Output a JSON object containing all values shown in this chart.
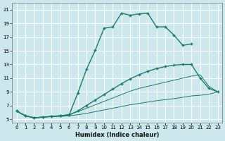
{
  "xlabel": "Humidex (Indice chaleur)",
  "bg_color": "#cce8ec",
  "grid_color": "#ffffff",
  "line_color": "#1a7a6e",
  "xlim": [
    -0.5,
    23.5
  ],
  "ylim": [
    4.5,
    22.0
  ],
  "xticks": [
    0,
    1,
    2,
    3,
    4,
    5,
    6,
    7,
    8,
    9,
    10,
    11,
    12,
    13,
    14,
    15,
    16,
    17,
    18,
    19,
    20,
    21,
    22,
    23
  ],
  "yticks": [
    5,
    7,
    9,
    11,
    13,
    15,
    17,
    19,
    21
  ],
  "line1_x": [
    0,
    1,
    2,
    3,
    4,
    5,
    6,
    7,
    8,
    9,
    10,
    11,
    12,
    13,
    14,
    15,
    16,
    17,
    18,
    19,
    20,
    21,
    22,
    23
  ],
  "line1_y": [
    6.2,
    5.5,
    5.2,
    5.3,
    5.4,
    5.4,
    5.5,
    5.65,
    5.85,
    6.1,
    6.35,
    6.6,
    6.85,
    7.1,
    7.3,
    7.5,
    7.7,
    7.85,
    8.0,
    8.2,
    8.4,
    8.5,
    8.65,
    9.0
  ],
  "line2_x": [
    0,
    1,
    2,
    3,
    4,
    5,
    6,
    7,
    8,
    9,
    10,
    11,
    12,
    13,
    14,
    15,
    16,
    17,
    18,
    19,
    20,
    21,
    22,
    23
  ],
  "line2_y": [
    6.2,
    5.5,
    5.2,
    5.3,
    5.4,
    5.5,
    5.7,
    6.1,
    6.6,
    7.1,
    7.6,
    8.1,
    8.6,
    9.1,
    9.5,
    9.8,
    10.1,
    10.4,
    10.7,
    11.0,
    11.3,
    11.5,
    9.8,
    9.0
  ],
  "line3_x": [
    0,
    1,
    2,
    3,
    4,
    5,
    6,
    7,
    8,
    9,
    10,
    11,
    12,
    13,
    14,
    15,
    16,
    17,
    18,
    19,
    20
  ],
  "line3_y": [
    6.2,
    5.5,
    5.2,
    5.3,
    5.4,
    5.5,
    5.6,
    8.8,
    12.3,
    15.1,
    18.3,
    18.5,
    20.5,
    20.2,
    20.4,
    20.5,
    18.5,
    18.5,
    17.3,
    15.8,
    16.0
  ],
  "line4_x": [
    0,
    1,
    2,
    3,
    4,
    5,
    6,
    7,
    8,
    9,
    10,
    11,
    12,
    13,
    14,
    15,
    16,
    17,
    18,
    19,
    20,
    21,
    22,
    23
  ],
  "line4_y": [
    6.2,
    5.5,
    5.2,
    5.3,
    5.4,
    5.5,
    5.6,
    6.2,
    7.0,
    7.8,
    8.6,
    9.4,
    10.2,
    10.9,
    11.5,
    12.0,
    12.4,
    12.7,
    12.9,
    13.0,
    13.0,
    11.0,
    9.5,
    9.0
  ]
}
